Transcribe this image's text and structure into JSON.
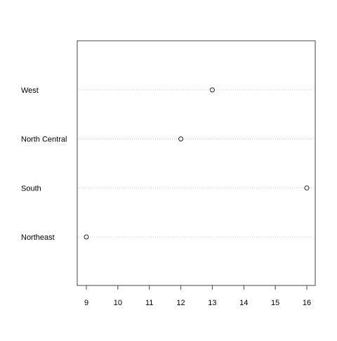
{
  "chart_data": {
    "type": "scatter",
    "subtype": "dotchart",
    "categories": [
      "Northeast",
      "South",
      "North Central",
      "West"
    ],
    "values": [
      9,
      16,
      12,
      13
    ],
    "xlim": [
      9,
      16
    ],
    "x_ticks": [
      9,
      10,
      11,
      12,
      13,
      14,
      15,
      16
    ],
    "title": "",
    "xlabel": "",
    "ylabel": "",
    "grid": "dotted horizontal guide lines per category",
    "marker": "open circle",
    "colors": {
      "frame": "#444444",
      "guide": "#c8c8c8",
      "marker": "#222222",
      "text": "#000000",
      "background": "#ffffff"
    }
  }
}
